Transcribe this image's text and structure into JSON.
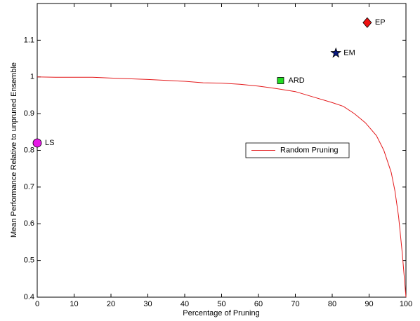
{
  "chart_data": {
    "type": "line",
    "xlabel": "Percentage of Pruning",
    "ylabel": "Mean Performance Relative to unpruned Ensemble",
    "xlim": [
      0,
      100
    ],
    "xticks": [
      0,
      10,
      20,
      30,
      40,
      50,
      60,
      70,
      80,
      90,
      100
    ],
    "ylim": [
      0.4,
      1.2
    ],
    "yticks": [
      0.4,
      0.5,
      0.6,
      0.7,
      0.8,
      0.9,
      1,
      1.1
    ],
    "legend": "center-right",
    "series": [
      {
        "name": "Random Pruning",
        "color": "#e41a1c",
        "x": [
          0,
          5,
          15,
          20,
          30,
          40,
          45,
          50,
          55,
          60,
          65,
          70,
          75,
          80,
          83,
          86,
          89,
          92,
          94,
          96,
          97,
          98,
          99,
          99.5,
          100
        ],
        "values": [
          1.0,
          0.999,
          0.999,
          0.997,
          0.993,
          0.988,
          0.984,
          0.983,
          0.98,
          0.975,
          0.968,
          0.96,
          0.945,
          0.93,
          0.92,
          0.9,
          0.875,
          0.84,
          0.8,
          0.74,
          0.69,
          0.62,
          0.52,
          0.46,
          0.4
        ]
      }
    ],
    "points": [
      {
        "name": "LS",
        "x": 0,
        "y": 0.82,
        "color": "#e619e6",
        "marker": "circle"
      },
      {
        "name": "ARD",
        "x": 66,
        "y": 0.99,
        "color": "#22dd22",
        "marker": "square"
      },
      {
        "name": "EM",
        "x": 81,
        "y": 1.065,
        "color": "#0a1a80",
        "marker": "star"
      },
      {
        "name": "EP",
        "x": 89.5,
        "y": 1.148,
        "color": "#ee1111",
        "marker": "diamond"
      }
    ]
  }
}
